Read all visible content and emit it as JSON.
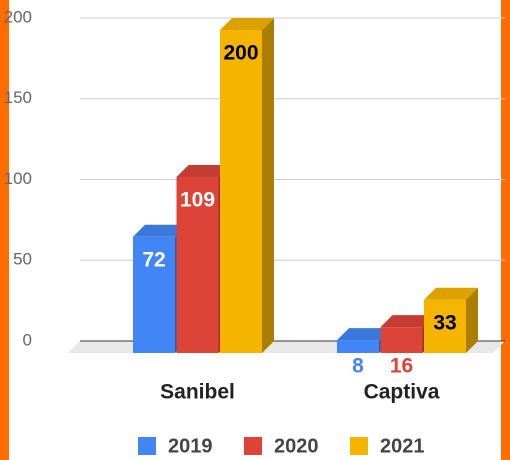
{
  "chart_data": {
    "type": "bar3d",
    "categories": [
      "Sanibel",
      "Captiva"
    ],
    "series": [
      {
        "name": "2019",
        "color": "#4285f4",
        "label_color": "#ffffff",
        "values": [
          72,
          8
        ]
      },
      {
        "name": "2020",
        "color": "#db4437",
        "label_color": "#ffffff",
        "values": [
          109,
          16
        ]
      },
      {
        "name": "2021",
        "color": "#f4b400",
        "label_color": "#000000",
        "values": [
          200,
          33
        ]
      }
    ],
    "ylim": [
      0,
      200
    ],
    "yticks": [
      0,
      50,
      100,
      150,
      200
    ],
    "grid": true,
    "legend": "bottom"
  }
}
